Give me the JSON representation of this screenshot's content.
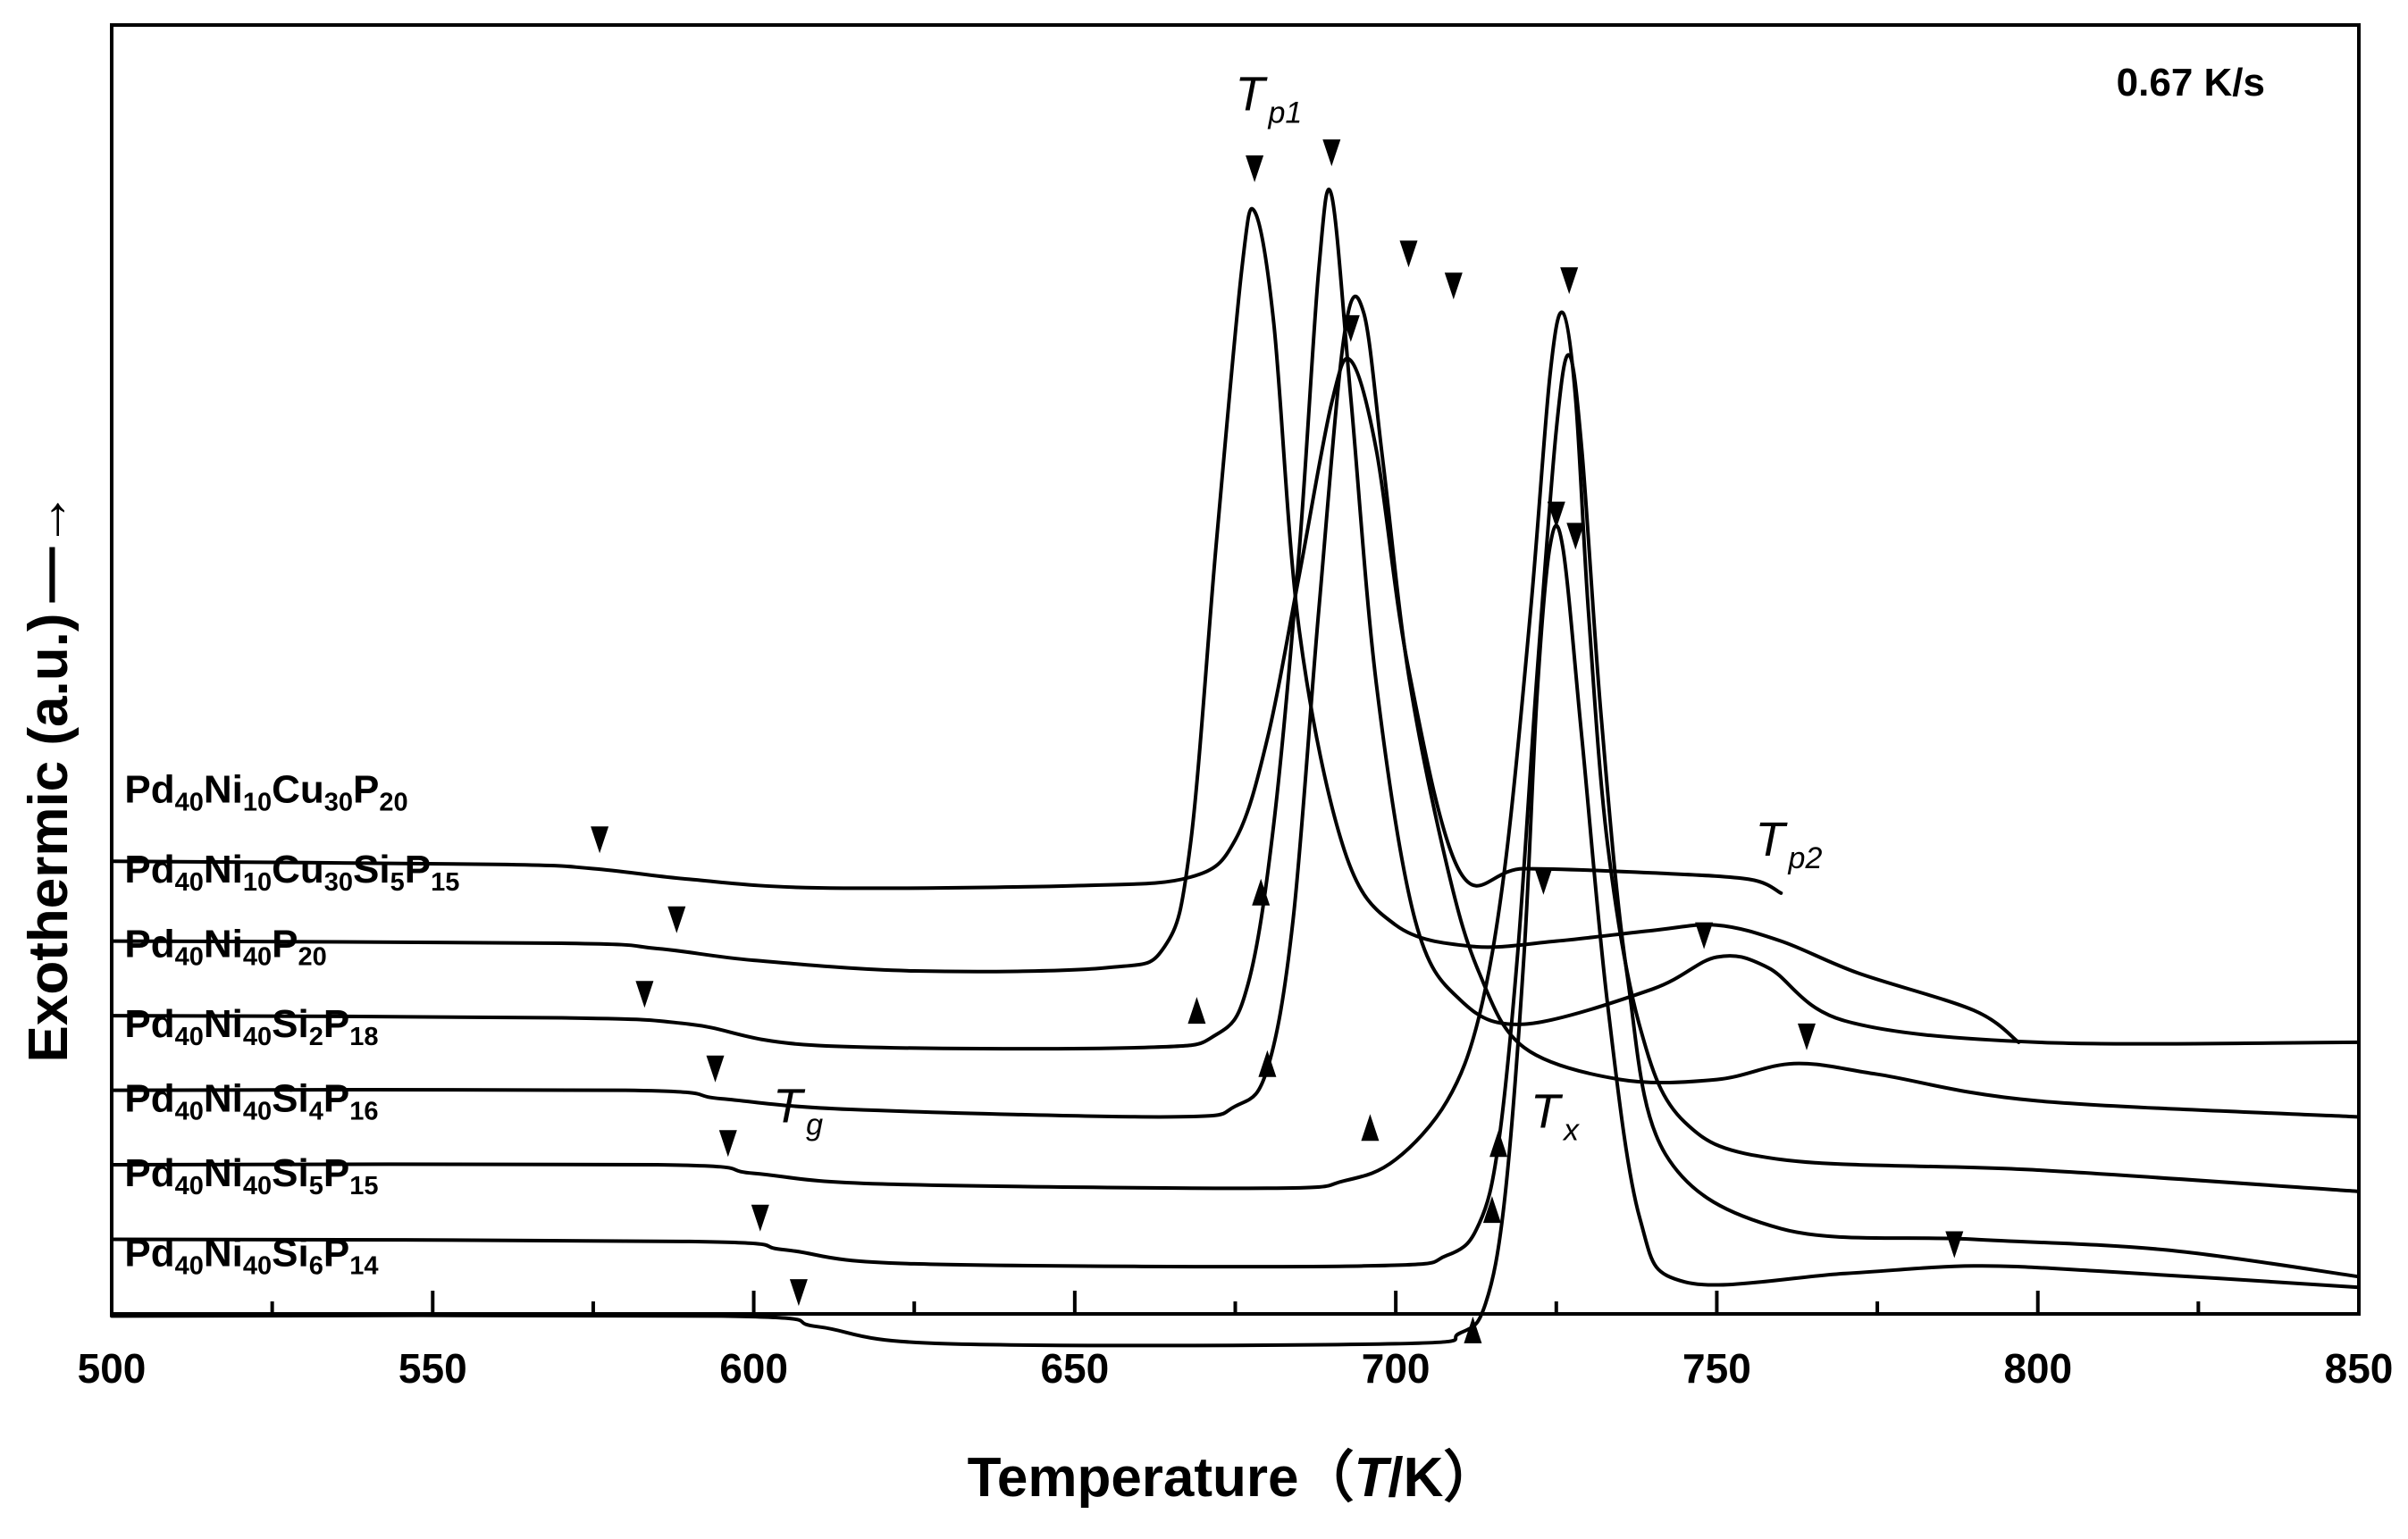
{
  "chart_data": {
    "type": "line",
    "title": "",
    "rate_label": "0.67 K/s",
    "xlabel": {
      "prefix": "Temperature（",
      "var": "T",
      "unit": "/K）"
    },
    "ylabel": "Exothermic (a.u.)",
    "ylabel_arrow": "—→",
    "xlim": [
      500,
      850
    ],
    "xticks": [
      "500",
      "550",
      "600",
      "650",
      "700",
      "750",
      "800",
      "850"
    ],
    "xtick_values": [
      500,
      550,
      600,
      650,
      700,
      750,
      800,
      850
    ],
    "minor_xtick_values": [
      525,
      575,
      625,
      675,
      725,
      775,
      825
    ],
    "ylim": [
      -2.4,
      9.7
    ],
    "grid": false,
    "annotations": [
      {
        "main": "T",
        "sub": "p1",
        "at": [
          675,
          8.9
        ]
      },
      {
        "main": "T",
        "sub": "p2",
        "at": [
          756,
          1.9
        ]
      },
      {
        "main": "T",
        "sub": "g",
        "at": [
          603,
          -0.6
        ]
      },
      {
        "main": "T",
        "sub": "x",
        "at": [
          721,
          -0.65
        ]
      }
    ],
    "series": [
      {
        "name": "Pd40Ni10Cu30P20",
        "label": [
          {
            "t": "Pd"
          },
          {
            "t": "40",
            "s": 1
          },
          {
            "t": "Ni"
          },
          {
            "t": "10",
            "s": 1
          },
          {
            "t": "Cu"
          },
          {
            "t": "30",
            "s": 1
          },
          {
            "t": "P"
          },
          {
            "t": "20",
            "s": 1
          }
        ],
        "label_pos": [
          502,
          2.4
        ],
        "x": [
          500,
          560,
          575,
          590,
          610,
          650,
          668,
          675,
          680,
          685,
          690,
          693,
          697,
          702,
          710,
          720,
          740,
          755,
          760
        ],
        "y": [
          1.85,
          1.82,
          1.78,
          1.68,
          1.6,
          1.62,
          1.7,
          2.05,
          3.0,
          4.55,
          6.15,
          6.55,
          5.7,
          3.65,
          1.75,
          1.78,
          1.74,
          1.68,
          1.55
        ],
        "markers": [
          {
            "x": 576,
            "y": 2.05,
            "dir": "down"
          },
          {
            "x": 693,
            "y": 6.85,
            "dir": "down"
          },
          {
            "x": 723,
            "y": 1.66,
            "dir": "down"
          }
        ]
      },
      {
        "name": "Pd40Ni10Cu30Si5P15",
        "label": [
          {
            "t": "Pd"
          },
          {
            "t": "40",
            "s": 1
          },
          {
            "t": "Ni"
          },
          {
            "t": "10",
            "s": 1
          },
          {
            "t": "Cu"
          },
          {
            "t": "30",
            "s": 1
          },
          {
            "t": "Si"
          },
          {
            "t": "5",
            "s": 1
          },
          {
            "t": "P"
          },
          {
            "t": "15",
            "s": 1
          }
        ],
        "label_pos": [
          502,
          1.65
        ],
        "x": [
          500,
          570,
          585,
          600,
          625,
          655,
          664,
          668,
          672,
          676,
          678,
          681,
          685,
          692,
          700,
          712,
          725,
          740,
          750,
          760,
          772,
          790,
          797
        ],
        "y": [
          1.1,
          1.08,
          1.03,
          0.92,
          0.82,
          0.85,
          1.05,
          2.0,
          4.8,
          7.4,
          7.95,
          6.9,
          4.0,
          1.95,
          1.25,
          1.05,
          1.1,
          1.2,
          1.25,
          1.1,
          0.8,
          0.45,
          0.15
        ],
        "markers": [
          {
            "x": 588,
            "y": 1.3,
            "dir": "down"
          },
          {
            "x": 678,
            "y": 8.35,
            "dir": "down"
          },
          {
            "x": 679,
            "y": 1.56,
            "dir": "up"
          },
          {
            "x": 748,
            "y": 1.15,
            "dir": "down"
          }
        ]
      },
      {
        "name": "Pd40Ni40P20",
        "label": [
          {
            "t": "Pd"
          },
          {
            "t": "40",
            "s": 1
          },
          {
            "t": "Ni"
          },
          {
            "t": "40",
            "s": 1
          },
          {
            "t": "P"
          },
          {
            "t": "20",
            "s": 1
          }
        ],
        "label_pos": [
          502,
          0.95
        ],
        "x": [
          500,
          570,
          590,
          610,
          660,
          672,
          677,
          681,
          685,
          688,
          690,
          693,
          697,
          703,
          710,
          720,
          740,
          750,
          758,
          770,
          800,
          850
        ],
        "y": [
          0.4,
          0.38,
          0.32,
          0.12,
          0.1,
          0.22,
          0.7,
          2.2,
          4.8,
          7.4,
          8.1,
          6.2,
          3.5,
          1.3,
          0.55,
          0.32,
          0.65,
          0.95,
          0.85,
          0.35,
          0.15,
          0.15
        ],
        "markers": [
          {
            "x": 583,
            "y": 0.6,
            "dir": "down"
          },
          {
            "x": 690,
            "y": 8.5,
            "dir": "down"
          },
          {
            "x": 669,
            "y": 0.45,
            "dir": "up"
          },
          {
            "x": 702,
            "y": 7.55,
            "dir": "down"
          }
        ]
      },
      {
        "name": "Pd40Ni40Si2P18",
        "label": [
          {
            "t": "Pd"
          },
          {
            "t": "40",
            "s": 1
          },
          {
            "t": "Ni"
          },
          {
            "t": "40",
            "s": 1
          },
          {
            "t": "Si"
          },
          {
            "t": "2",
            "s": 1
          },
          {
            "t": "P"
          },
          {
            "t": "18",
            "s": 1
          }
        ],
        "label_pos": [
          502,
          0.2
        ],
        "x": [
          500,
          580,
          595,
          615,
          665,
          675,
          680,
          684,
          688,
          692,
          695,
          698,
          702,
          708,
          713,
          720,
          735,
          750,
          762,
          775,
          800,
          850
        ],
        "y": [
          -0.3,
          -0.3,
          -0.38,
          -0.48,
          -0.55,
          -0.45,
          -0.1,
          1.3,
          4.2,
          6.8,
          7.0,
          5.6,
          3.6,
          1.8,
          0.8,
          0.1,
          -0.2,
          -0.2,
          -0.05,
          -0.15,
          -0.4,
          -0.55
        ],
        "markers": [
          {
            "x": 594,
            "y": -0.1,
            "dir": "down"
          },
          {
            "x": 709,
            "y": 7.25,
            "dir": "down"
          },
          {
            "x": 680,
            "y": -0.05,
            "dir": "up"
          },
          {
            "x": 764,
            "y": 0.2,
            "dir": "down"
          }
        ]
      },
      {
        "name": "Pd40Ni40Si4P16",
        "label": [
          {
            "t": "Pd"
          },
          {
            "t": "40",
            "s": 1
          },
          {
            "t": "Ni"
          },
          {
            "t": "40",
            "s": 1
          },
          {
            "t": "Si"
          },
          {
            "t": "4",
            "s": 1
          },
          {
            "t": "P"
          },
          {
            "t": "16",
            "s": 1
          }
        ],
        "label_pos": [
          502,
          -0.5
        ],
        "x": [
          500,
          585,
          600,
          620,
          680,
          692,
          700,
          708,
          713,
          717,
          721,
          724,
          726,
          728,
          730,
          733,
          738,
          745,
          760,
          800,
          850
        ],
        "y": [
          -1.0,
          -1.0,
          -1.08,
          -1.18,
          -1.22,
          -1.15,
          -0.95,
          -0.4,
          0.4,
          1.8,
          4.2,
          6.4,
          7.0,
          6.2,
          4.2,
          2.0,
          0.3,
          -0.6,
          -0.95,
          -1.05,
          -1.25
        ],
        "markers": [
          {
            "x": 596,
            "y": -0.8,
            "dir": "down"
          },
          {
            "x": 727,
            "y": 7.3,
            "dir": "down"
          },
          {
            "x": 696,
            "y": -0.65,
            "dir": "up"
          }
        ]
      },
      {
        "name": "Pd40Ni40Si5P15",
        "label": [
          {
            "t": "Pd"
          },
          {
            "t": "40",
            "s": 1
          },
          {
            "t": "Ni"
          },
          {
            "t": "40",
            "s": 1
          },
          {
            "t": "Si"
          },
          {
            "t": "5",
            "s": 1
          },
          {
            "t": "P"
          },
          {
            "t": "15",
            "s": 1
          }
        ],
        "label_pos": [
          502,
          -1.2
        ],
        "x": [
          500,
          590,
          605,
          625,
          695,
          708,
          713,
          716,
          719,
          722,
          725,
          727,
          729,
          732,
          736,
          742,
          760,
          790,
          820,
          850
        ],
        "y": [
          -1.7,
          -1.72,
          -1.8,
          -1.93,
          -1.95,
          -1.85,
          -1.55,
          -0.8,
          1.0,
          3.6,
          5.9,
          6.6,
          5.7,
          3.2,
          0.8,
          -0.9,
          -1.6,
          -1.7,
          -1.8,
          -2.05
        ],
        "markers": [
          {
            "x": 601,
            "y": -1.5,
            "dir": "down"
          },
          {
            "x": 728,
            "y": 4.9,
            "dir": "down"
          },
          {
            "x": 715,
            "y": -1.42,
            "dir": "up"
          }
        ]
      },
      {
        "name": "Pd40Ni40Si6P14",
        "label": [
          {
            "t": "Pd"
          },
          {
            "t": "40",
            "s": 1
          },
          {
            "t": "Ni"
          },
          {
            "t": "40",
            "s": 1
          },
          {
            "t": "Si"
          },
          {
            "t": "6",
            "s": 1
          },
          {
            "t": "P"
          },
          {
            "t": "14",
            "s": 1
          }
        ],
        "label_pos": [
          502,
          -1.95
        ],
        "x": [
          500,
          595,
          610,
          630,
          700,
          710,
          714,
          717,
          720,
          722,
          724,
          726,
          729,
          733,
          738,
          745,
          770,
          790,
          810,
          850
        ],
        "y": [
          -2.42,
          -2.42,
          -2.52,
          -2.68,
          -2.68,
          -2.58,
          -2.3,
          -1.3,
          1.0,
          3.4,
          4.8,
          4.8,
          3.0,
          0.5,
          -1.5,
          -2.1,
          -2.02,
          -1.95,
          -2.0,
          -2.15
        ],
        "markers": [
          {
            "x": 607,
            "y": -2.2,
            "dir": "down"
          },
          {
            "x": 725,
            "y": 5.1,
            "dir": "down"
          },
          {
            "x": 712,
            "y": -2.55,
            "dir": "up"
          },
          {
            "x": 787,
            "y": -1.75,
            "dir": "down"
          },
          {
            "x": 716,
            "y": -0.8,
            "dir": "up"
          }
        ]
      }
    ]
  }
}
